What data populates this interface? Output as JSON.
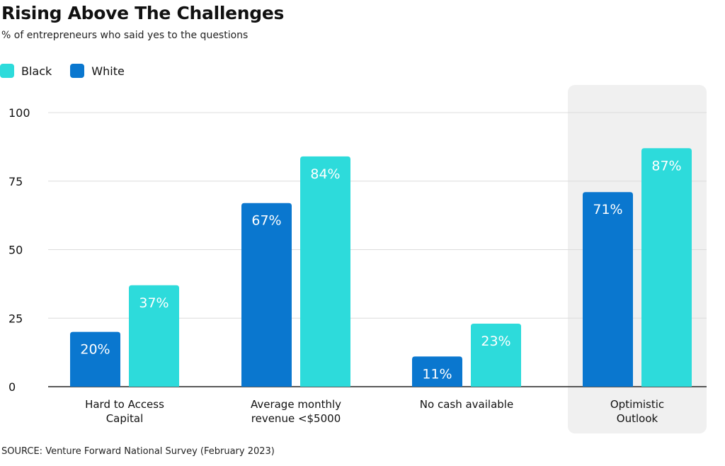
{
  "chart_data": {
    "type": "bar",
    "title": "Rising Above The Challenges",
    "subtitle": "% of entrepreneurs who said yes to the questions",
    "categories": [
      [
        "Hard to Access",
        "Capital"
      ],
      [
        "Average monthly",
        "revenue <$5000"
      ],
      [
        "No cash available"
      ],
      [
        "Optimistic",
        "Outlook"
      ]
    ],
    "series": [
      {
        "name": "White",
        "color": "#0A77CF",
        "values": [
          20,
          67,
          11,
          71
        ],
        "labels": [
          "20%",
          "67%",
          "11%",
          "71%"
        ]
      },
      {
        "name": "Black",
        "color": "#2DDBDB",
        "values": [
          37,
          84,
          23,
          87
        ],
        "labels": [
          "37%",
          "84%",
          "23%",
          "87%"
        ]
      }
    ],
    "ylim": [
      0,
      100
    ],
    "yticks": [
      0,
      25,
      50,
      75,
      100
    ],
    "grid": true,
    "highlighted_category": "Optimistic Outlook",
    "highlight_color": "#F0F0F0",
    "legend": {
      "placement": "top-left",
      "order": [
        "Black",
        "White"
      ]
    }
  },
  "source": "SOURCE: Venture Forward National Survey (February 2023)"
}
